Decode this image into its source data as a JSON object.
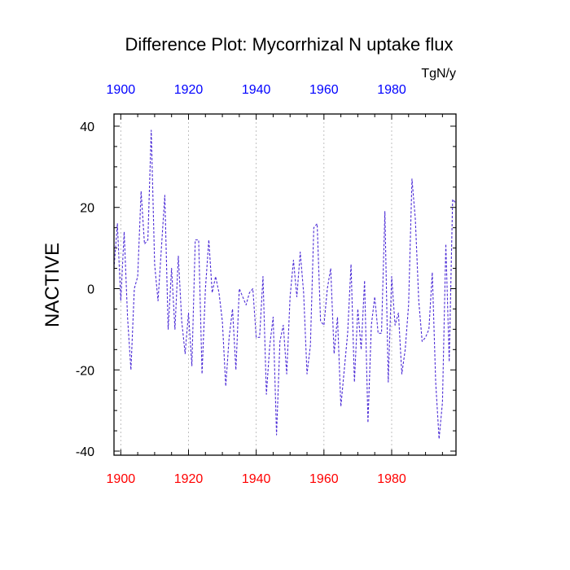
{
  "chart_data": {
    "type": "line",
    "title": "Difference Plot: Mycorrhizal N uptake flux",
    "units": "TgN/y",
    "ylabel": "NACTIVE",
    "xlabel": "",
    "xlim": [
      1898,
      1999
    ],
    "ylim": [
      -41,
      43
    ],
    "xticks": [
      1900,
      1920,
      1940,
      1960,
      1980
    ],
    "xtick_labels": [
      "1900",
      "1920",
      "1940",
      "1960",
      "1980"
    ],
    "yticks": [
      -40,
      -20,
      0,
      20,
      40
    ],
    "ytick_labels": [
      "-40",
      "-20",
      "0",
      "20",
      "40"
    ],
    "grid": "vertical dashed lines at x ticks",
    "series": [
      {
        "color": "#4b2bd6",
        "style": "dashed",
        "x": [
          1898,
          1899,
          1900,
          1901,
          1902,
          1903,
          1904,
          1905,
          1906,
          1907,
          1908,
          1909,
          1910,
          1911,
          1912,
          1913,
          1914,
          1915,
          1916,
          1917,
          1918,
          1919,
          1920,
          1921,
          1922,
          1923,
          1924,
          1925,
          1926,
          1927,
          1928,
          1929,
          1930,
          1931,
          1932,
          1933,
          1934,
          1935,
          1936,
          1937,
          1938,
          1939,
          1940,
          1941,
          1942,
          1943,
          1944,
          1945,
          1946,
          1947,
          1948,
          1949,
          1950,
          1951,
          1952,
          1953,
          1954,
          1955,
          1956,
          1957,
          1958,
          1959,
          1960,
          1961,
          1962,
          1963,
          1964,
          1965,
          1966,
          1967,
          1968,
          1969,
          1970,
          1971,
          1972,
          1973,
          1974,
          1975,
          1976,
          1977,
          1978,
          1979,
          1980,
          1981,
          1982,
          1983,
          1984,
          1985,
          1986,
          1987,
          1988,
          1989,
          1990,
          1991,
          1992,
          1993,
          1994,
          1995,
          1996,
          1997,
          1998,
          1999
        ],
        "y": [
          5,
          16,
          -3,
          14,
          -7,
          -20,
          0,
          3,
          24,
          11,
          12,
          39,
          6,
          -3,
          10,
          23,
          -10,
          5,
          -10,
          8,
          -8,
          -16,
          -6,
          -19,
          12,
          12,
          -21,
          0,
          12,
          -1,
          3,
          -1,
          -8,
          -24,
          -12,
          -5,
          -20,
          0,
          -2,
          -4,
          -1,
          0,
          -12,
          -12,
          3,
          -26,
          -14,
          -7,
          -36,
          -13,
          -9,
          -21,
          -2,
          7,
          -2,
          9,
          -1,
          -21,
          -14,
          15,
          16,
          -8,
          -9,
          0,
          5,
          -16,
          -7,
          -29,
          -20,
          -11,
          6,
          -23,
          -5,
          -15,
          2,
          -33,
          -9,
          -2,
          -11,
          -11,
          19,
          -23,
          3,
          -9,
          -6,
          -21,
          -15,
          -4,
          27,
          17,
          -3,
          -13,
          -12,
          -10,
          4,
          -23,
          -37,
          -28,
          11,
          -18,
          22,
          21
        ]
      }
    ]
  },
  "colors": {
    "bottom_axis_labels": "#ff0000",
    "top_axis_labels": "#0000ff",
    "line": "#4b2bd6"
  }
}
